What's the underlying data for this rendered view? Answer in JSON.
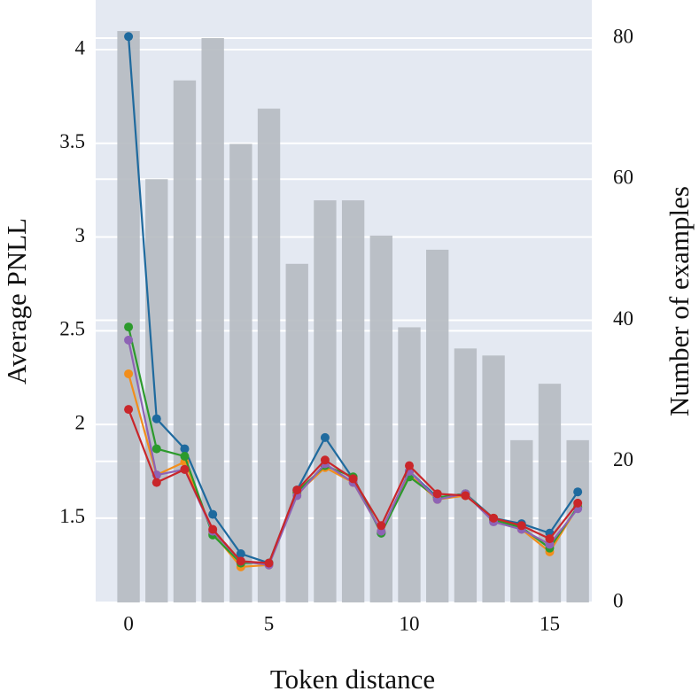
{
  "chart_data": {
    "type": "line",
    "x_label": "Token distance",
    "y_label": "Average PNLL",
    "y2_label": "Number of examples",
    "x": [
      0,
      1,
      2,
      3,
      4,
      5,
      6,
      7,
      8,
      9,
      10,
      11,
      12,
      13,
      14,
      15,
      16
    ],
    "xlim": [
      -1.17,
      16.5
    ],
    "xticks": [
      0,
      5,
      10,
      15
    ],
    "ylim": [
      1.05,
      4.265
    ],
    "yticks": [
      1.5,
      2,
      2.5,
      3,
      3.5,
      4
    ],
    "y2lim": [
      0,
      85.4
    ],
    "y2ticks": [
      0,
      20,
      40,
      60,
      80
    ],
    "grid": true,
    "bars": {
      "type": "bar",
      "axis": "y2",
      "color": "#b5bac1",
      "values": [
        81,
        60,
        74,
        80,
        65,
        70,
        48,
        57,
        57,
        52,
        39,
        50,
        36,
        35,
        23,
        31,
        23
      ]
    },
    "series": [
      {
        "color": "#1f6a9e",
        "values": [
          4.07,
          2.03,
          1.87,
          1.52,
          1.31,
          1.26,
          1.65,
          1.93,
          1.71,
          1.42,
          1.75,
          1.61,
          1.63,
          1.5,
          1.47,
          1.42,
          1.64
        ]
      },
      {
        "color": "#f28e1c",
        "values": [
          2.27,
          1.73,
          1.8,
          1.42,
          1.24,
          1.25,
          1.63,
          1.77,
          1.69,
          1.43,
          1.73,
          1.6,
          1.62,
          1.5,
          1.44,
          1.32,
          1.56
        ]
      },
      {
        "color": "#2c9a2c",
        "values": [
          2.52,
          1.87,
          1.83,
          1.41,
          1.26,
          1.26,
          1.64,
          1.78,
          1.72,
          1.42,
          1.72,
          1.61,
          1.63,
          1.49,
          1.45,
          1.34,
          1.56
        ]
      },
      {
        "color": "#8e63b5",
        "values": [
          2.45,
          1.73,
          1.76,
          1.43,
          1.27,
          1.25,
          1.62,
          1.79,
          1.69,
          1.43,
          1.75,
          1.6,
          1.63,
          1.48,
          1.44,
          1.36,
          1.55
        ]
      },
      {
        "color": "#c9262a",
        "values": [
          2.08,
          1.69,
          1.76,
          1.44,
          1.27,
          1.26,
          1.65,
          1.81,
          1.71,
          1.46,
          1.78,
          1.63,
          1.62,
          1.5,
          1.46,
          1.39,
          1.58
        ]
      }
    ]
  }
}
